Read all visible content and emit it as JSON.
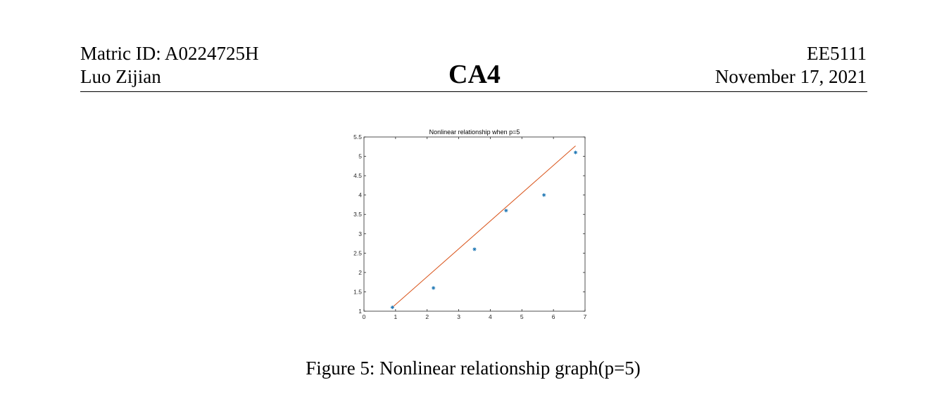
{
  "header": {
    "matric_id": "Matric ID: A0224725H",
    "author": "Luo Zijian",
    "title": "CA4",
    "course": "EE5111",
    "date": "November 17, 2021"
  },
  "caption": "Figure 5: Nonlinear relationship graph(p=5)",
  "chart_data": {
    "type": "scatter",
    "title": "Nonlinear relationship when p=5",
    "xlabel": "",
    "ylabel": "",
    "xlim": [
      0,
      7
    ],
    "ylim": [
      1,
      5.5
    ],
    "xticks": [
      "0",
      "1",
      "2",
      "3",
      "4",
      "5",
      "6",
      "7"
    ],
    "yticks": [
      "1",
      "1.5",
      "2",
      "2.5",
      "3",
      "3.5",
      "4",
      "4.5",
      "5",
      "5.5"
    ],
    "grid": false,
    "legend": "none",
    "colors": {
      "points": "#1f77b4",
      "line": "#d95319"
    },
    "series": [
      {
        "type": "scatter",
        "marker": "*",
        "x": [
          0.9,
          2.2,
          3.5,
          4.5,
          5.7,
          6.7
        ],
        "y": [
          1.1,
          1.6,
          2.6,
          3.6,
          4.0,
          5.1
        ]
      },
      {
        "type": "line",
        "x": [
          0.9,
          6.7
        ],
        "y": [
          1.1,
          5.27
        ]
      }
    ]
  }
}
